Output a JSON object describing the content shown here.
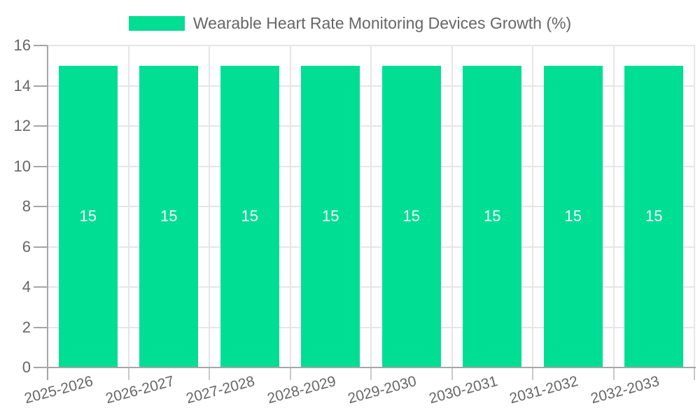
{
  "chart_data": {
    "type": "bar",
    "title": "Wearable Heart Rate Monitoring Devices Growth (%)",
    "categories": [
      "2025-2026",
      "2026-2027",
      "2027-2028",
      "2028-2029",
      "2029-2030",
      "2030-2031",
      "2031-2032",
      "2032-2033"
    ],
    "series": [
      {
        "name": "Wearable Heart Rate Monitoring Devices Growth (%)",
        "values": [
          15,
          15,
          15,
          15,
          15,
          15,
          15,
          15
        ]
      }
    ],
    "values": [
      15,
      15,
      15,
      15,
      15,
      15,
      15,
      15
    ],
    "bar_labels": [
      "15",
      "15",
      "15",
      "15",
      "15",
      "15",
      "15",
      "15"
    ],
    "xlabel": "",
    "ylabel": "",
    "ylim": [
      0,
      16
    ],
    "yticks": [
      0,
      2,
      4,
      6,
      8,
      10,
      12,
      14,
      16
    ],
    "grid": true,
    "legend_position": "top",
    "x_label_rotation_deg": -15,
    "colors": {
      "bar": "#00DE94",
      "grid": "#e6e6e6",
      "axis": "#a6a6a6",
      "tick_mark": "#c9c9c9",
      "tick_text": "#666666",
      "legend_text": "#666666",
      "bar_label_text": "#ffffff",
      "background": "#ffffff"
    }
  }
}
